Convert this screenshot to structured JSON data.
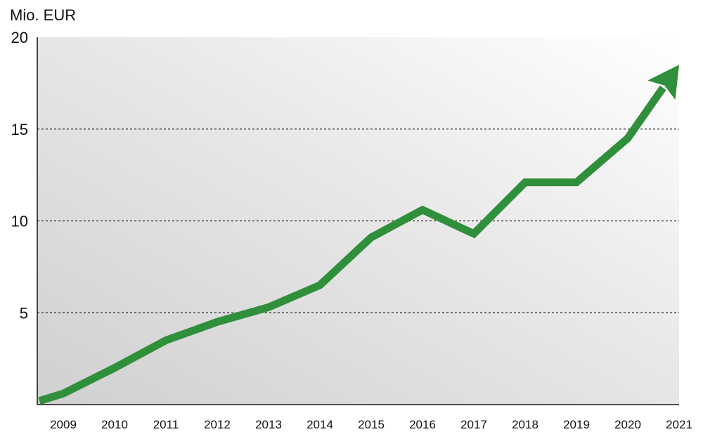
{
  "chart_data": {
    "type": "line",
    "ylabel": "Mio. EUR",
    "xlabel": "",
    "title": "",
    "ylim": [
      0,
      20
    ],
    "yticks": [
      5,
      10,
      15,
      20
    ],
    "categories": [
      "2009",
      "2010",
      "2011",
      "2012",
      "2013",
      "2014",
      "2015",
      "2016",
      "2017",
      "2018",
      "2019",
      "2020",
      "2021"
    ],
    "values": [
      0.6,
      2.0,
      3.5,
      4.5,
      5.3,
      6.5,
      9.1,
      10.6,
      9.3,
      12.1,
      12.1,
      14.5,
      18.5
    ],
    "grid": "horizontal dashed",
    "line_color": "#2f8f3a",
    "arrow_at_end": true
  }
}
